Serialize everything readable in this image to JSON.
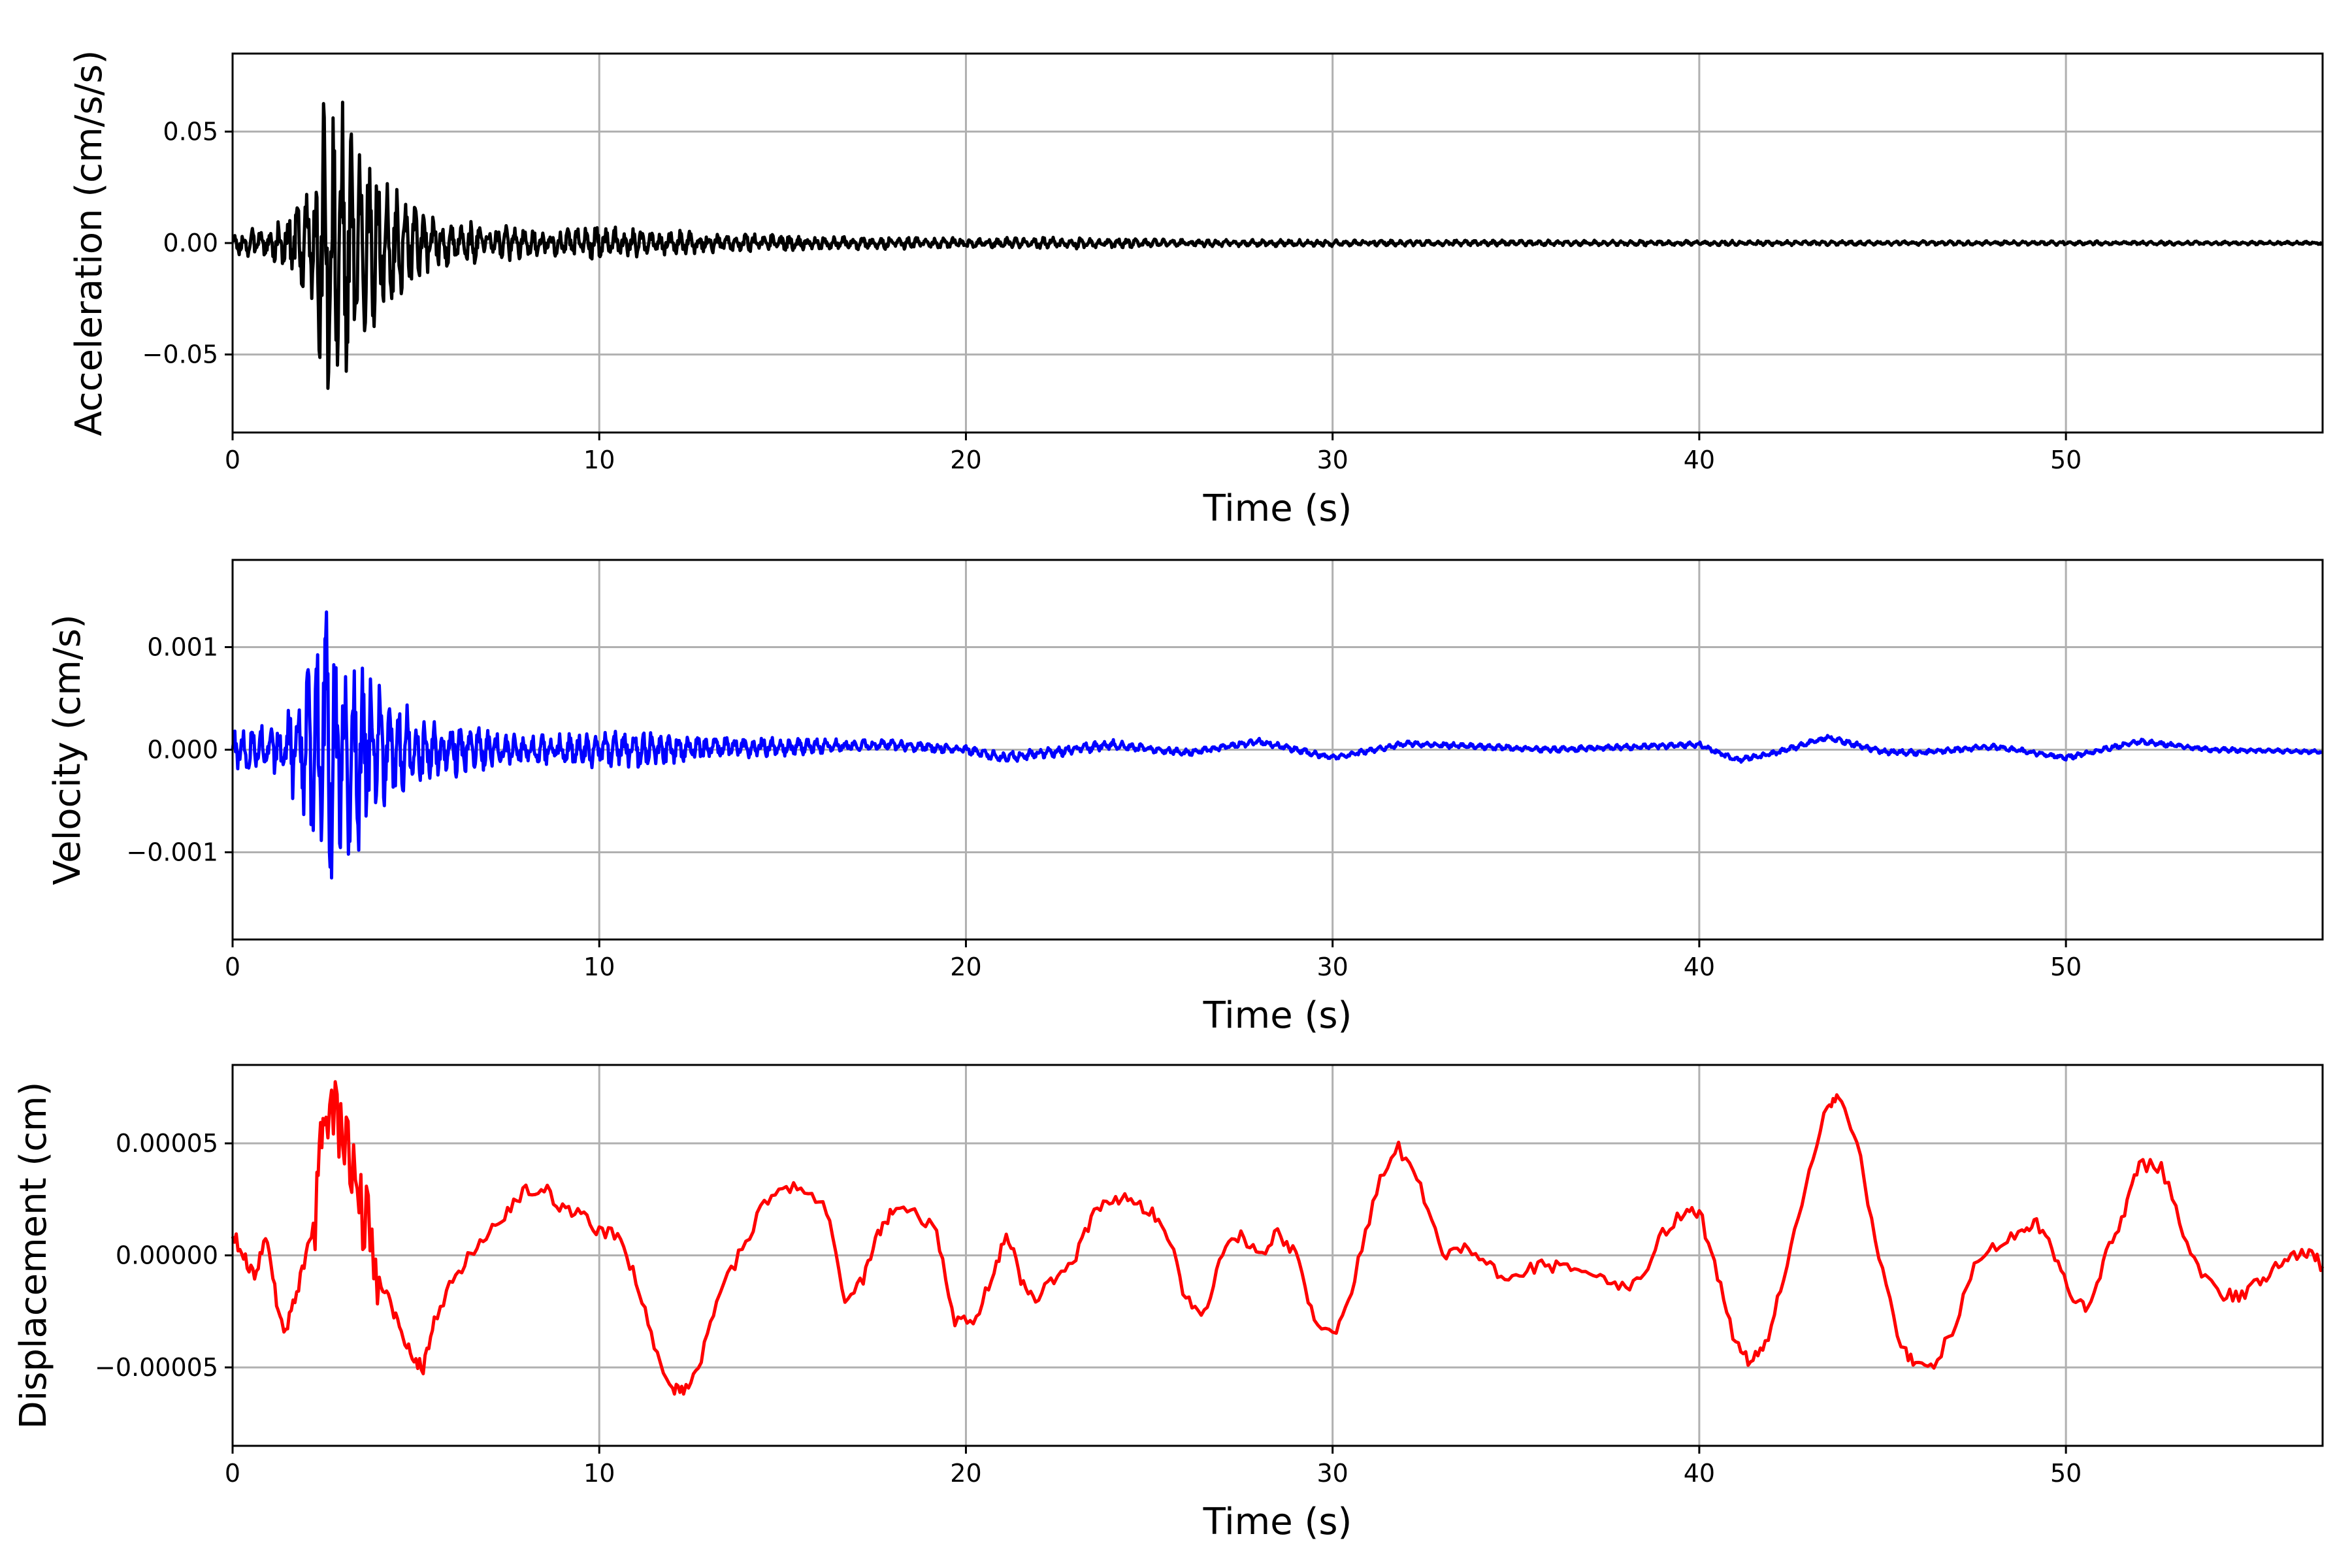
{
  "chart_data": [
    {
      "type": "line",
      "xlabel": "Time (s)",
      "ylabel": "Acceleration (cm/s/s)",
      "xlim": [
        0,
        57
      ],
      "ylim": [
        -0.085,
        0.085
      ],
      "xticks": [
        0,
        10,
        20,
        30,
        40,
        50
      ],
      "xtick_labels": [
        "0",
        "10",
        "20",
        "30",
        "40",
        "50"
      ],
      "yticks": [
        0.05,
        0.0,
        -0.05
      ],
      "ytick_labels": [
        "0.05",
        "0.00",
        "−0.05"
      ],
      "grid": true,
      "color": "#000000",
      "envelope": {
        "t": [
          0,
          1.0,
          1.8,
          2.3,
          2.5,
          3.0,
          3.5,
          4.0,
          4.5,
          5.5,
          6.5,
          8,
          10,
          11,
          13,
          15,
          17,
          20,
          23,
          25,
          30,
          40,
          50,
          57
        ],
        "amp": [
          0.006,
          0.008,
          0.02,
          0.04,
          0.076,
          0.065,
          0.055,
          0.035,
          0.025,
          0.012,
          0.01,
          0.007,
          0.008,
          0.007,
          0.005,
          0.004,
          0.003,
          0.0025,
          0.003,
          0.0018,
          0.0015,
          0.0012,
          0.001,
          0.0008
        ]
      }
    },
    {
      "type": "line",
      "xlabel": "Time (s)",
      "ylabel": "Velocity (cm/s)",
      "xlim": [
        0,
        57
      ],
      "ylim": [
        -0.00185,
        0.00185
      ],
      "xticks": [
        0,
        10,
        20,
        30,
        40,
        50
      ],
      "xtick_labels": [
        "0",
        "10",
        "20",
        "30",
        "40",
        "50"
      ],
      "yticks": [
        0.001,
        0.0,
        -0.001
      ],
      "ytick_labels": [
        "0.001",
        "0.000",
        "−0.001"
      ],
      "grid": true,
      "color": "#0000ff",
      "envelope": {
        "t": [
          0,
          1.0,
          1.8,
          2.3,
          2.5,
          3.0,
          3.5,
          4.0,
          4.5,
          5.5,
          6.5,
          8,
          10,
          11,
          13,
          15,
          17,
          20,
          23,
          25,
          30,
          40,
          50,
          57
        ],
        "amp": [
          0.0002,
          0.00025,
          0.0006,
          0.0012,
          0.0015,
          0.0012,
          0.001,
          0.0007,
          0.0005,
          0.0003,
          0.00025,
          0.00015,
          0.00018,
          0.0002,
          0.00012,
          0.0001,
          6e-05,
          5e-05,
          6e-05,
          4e-05,
          3e-05,
          3e-05,
          3e-05,
          2e-05
        ]
      },
      "slow": {
        "t": [
          0,
          10,
          18,
          20,
          21,
          24,
          26,
          28,
          30,
          32,
          36,
          40,
          41,
          42,
          43.5,
          45,
          46,
          48,
          50,
          52,
          54,
          57
        ],
        "v": [
          0,
          0,
          5e-05,
          0.0,
          -8e-05,
          5e-05,
          -3e-05,
          8e-05,
          -8e-05,
          6e-05,
          0.0,
          5e-05,
          -0.0001,
          -4e-05,
          0.00012,
          -2e-05,
          -3e-05,
          3e-05,
          -8e-05,
          8e-05,
          0.0,
          -2e-05
        ]
      }
    },
    {
      "type": "line",
      "xlabel": "Time (s)",
      "ylabel": "Displacement (cm)",
      "xlim": [
        0,
        57
      ],
      "ylim": [
        -8.5e-05,
        8.5e-05
      ],
      "xticks": [
        0,
        10,
        20,
        30,
        40,
        50
      ],
      "xtick_labels": [
        "0",
        "10",
        "20",
        "30",
        "40",
        "50"
      ],
      "yticks": [
        5e-05,
        0.0,
        -5e-05
      ],
      "ytick_labels": [
        "0.00005",
        "0.00000",
        "−0.00005"
      ],
      "grid": true,
      "color": "#ff0000",
      "points": {
        "t": [
          0,
          0.3,
          0.6,
          0.9,
          1.2,
          1.4,
          1.7,
          2.0,
          2.3,
          2.5,
          2.8,
          3.1,
          3.4,
          3.7,
          4.0,
          4.3,
          4.6,
          4.9,
          5.2,
          5.5,
          6.0,
          6.5,
          7.0,
          7.5,
          8.0,
          8.5,
          9.0,
          9.5,
          10.0,
          10.5,
          11.0,
          11.5,
          12.0,
          12.3,
          12.7,
          13.2,
          13.8,
          14.4,
          15.0,
          15.6,
          16.2,
          16.7,
          17.2,
          17.6,
          18.0,
          18.6,
          19.2,
          19.7,
          20.2,
          20.7,
          21.1,
          21.5,
          21.9,
          22.4,
          23.0,
          23.5,
          24.0,
          24.5,
          25.0,
          25.5,
          26.0,
          26.5,
          27.0,
          27.5,
          28.0,
          28.5,
          29.0,
          29.5,
          30.1,
          30.6,
          31.2,
          31.8,
          32.4,
          33.0,
          33.6,
          34.2,
          34.8,
          35.4,
          36.0,
          36.6,
          37.2,
          37.8,
          38.4,
          39.0,
          39.6,
          40.0,
          40.5,
          41.0,
          41.4,
          41.8,
          42.3,
          42.9,
          43.5,
          43.8,
          44.3,
          44.9,
          45.5,
          45.9,
          46.4,
          47.0,
          47.6,
          48.2,
          48.8,
          49.2,
          49.7,
          50.2,
          50.6,
          51.1,
          51.6,
          52.0,
          52.6,
          53.2,
          53.8,
          54.3,
          54.8,
          55.3,
          55.8,
          56.3,
          56.7,
          57.0
        ],
        "v": [
          1e-05,
          0.0,
          -1e-05,
          1e-05,
          -2e-05,
          -3.5e-05,
          -2e-05,
          0.0,
          2e-05,
          7e-05,
          6e-05,
          5e-05,
          3e-05,
          1e-05,
          -1e-05,
          -2e-05,
          -3.5e-05,
          -4.5e-05,
          -5e-05,
          -3e-05,
          -1e-05,
          0.0,
          1e-05,
          2e-05,
          3e-05,
          3e-05,
          2e-05,
          2e-05,
          1e-05,
          1e-05,
          -1e-05,
          -4e-05,
          -6e-05,
          -6e-05,
          -5e-05,
          -2e-05,
          0.0,
          2e-05,
          3e-05,
          3e-05,
          2e-05,
          -2e-05,
          -1e-05,
          1e-05,
          2e-05,
          2e-05,
          1e-05,
          -3e-05,
          -3e-05,
          -1e-05,
          1e-05,
          -1e-05,
          -2e-05,
          -1e-05,
          0.0,
          2e-05,
          2.5e-05,
          2.5e-05,
          2e-05,
          1e-05,
          -2e-05,
          -2.5e-05,
          0.0,
          1e-05,
          0.0,
          1e-05,
          0.0,
          -3e-05,
          -3.5e-05,
          -1e-05,
          3e-05,
          4.8e-05,
          3e-05,
          0.0,
          5e-06,
          -5e-06,
          -1e-05,
          -5e-06,
          -5e-06,
          -5e-06,
          -1e-05,
          -1.5e-05,
          -1e-05,
          1e-05,
          2e-05,
          2e-05,
          -1e-05,
          -4e-05,
          -4.8e-05,
          -4e-05,
          -1e-05,
          3e-05,
          6.8e-05,
          7e-05,
          5e-05,
          0.0,
          -4e-05,
          -5e-05,
          -5e-05,
          -3e-05,
          0.0,
          5e-06,
          1e-05,
          1.5e-05,
          0.0,
          -2e-05,
          -2.5e-05,
          0.0,
          2e-05,
          4e-05,
          4e-05,
          1e-05,
          -1e-05,
          -1.8e-05,
          -1.8e-05,
          -1.2e-05,
          -5e-06,
          0.0,
          2e-06,
          -5e-06
        ]
      }
    }
  ]
}
